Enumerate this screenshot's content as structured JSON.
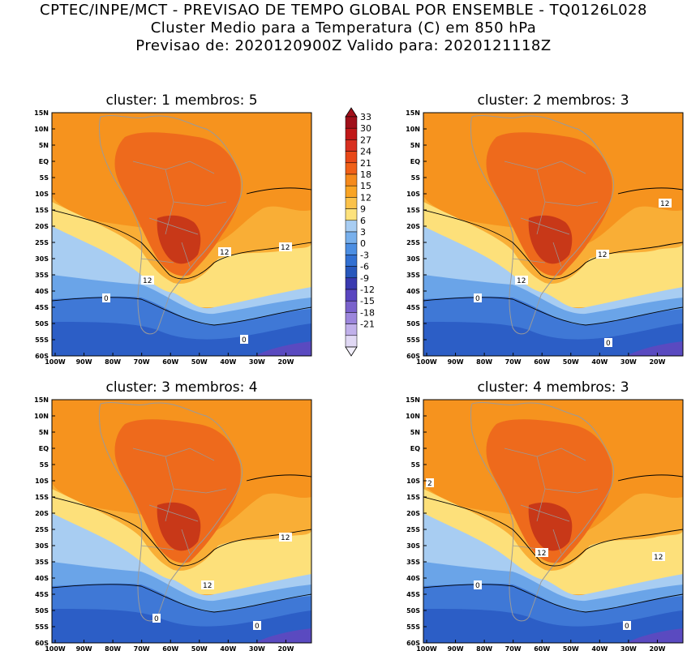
{
  "header": {
    "line1": "CPTEC/INPE/MCT - PREVISAO DE TEMPO GLOBAL POR ENSEMBLE - TQ0126L028",
    "line2": "Cluster Medio para a Temperatura (C) em 850 hPa",
    "line3": "Previsao de: 2020120900Z   Valido para: 2020121118Z"
  },
  "panels": [
    {
      "title": "cluster: 1   membros: 5",
      "labels": [
        "12",
        "12",
        "12",
        "0",
        "0"
      ]
    },
    {
      "title": "cluster: 2   membros: 3",
      "labels": [
        "12",
        "12",
        "12",
        "0",
        "0"
      ]
    },
    {
      "title": "cluster: 3   membros: 4",
      "labels": [
        "12",
        "12",
        "0",
        "0"
      ]
    },
    {
      "title": "cluster: 4   membros: 3",
      "labels": [
        "2",
        "12",
        "12",
        "0",
        "0"
      ]
    }
  ],
  "axes": {
    "lat_ticks": [
      "15N",
      "10N",
      "5N",
      "EQ",
      "5S",
      "10S",
      "15S",
      "20S",
      "25S",
      "30S",
      "35S",
      "40S",
      "45S",
      "50S",
      "55S",
      "60S"
    ],
    "lon_ticks": [
      "100W",
      "90W",
      "80W",
      "70W",
      "60W",
      "50W",
      "40W",
      "30W",
      "20W"
    ]
  },
  "colorbar": {
    "ticks": [
      "33",
      "30",
      "27",
      "24",
      "21",
      "18",
      "15",
      "12",
      "9",
      "6",
      "3",
      "0",
      "-3",
      "-6",
      "-9",
      "-12",
      "-15",
      "-18",
      "-21"
    ],
    "colors": [
      "#a0101a",
      "#c01818",
      "#d83020",
      "#e84818",
      "#f06018",
      "#f58a1c",
      "#f9a424",
      "#fbc24a",
      "#fde27c",
      "#a8cdf2",
      "#78b0ec",
      "#4c8ee2",
      "#3270d2",
      "#2858bc",
      "#3a3ab0",
      "#5a46c0",
      "#7a62cc",
      "#9c86dc",
      "#c0b0ea",
      "#e0d8f4"
    ]
  },
  "colors": {
    "deep_warm": "#c83818",
    "warm": "#ee6a1c",
    "orange": "#f6931e",
    "light_orange": "#f9ae36",
    "yellow": "#fde07a",
    "light_blue": "#a8cdf2",
    "mid_blue": "#6aa4e8",
    "blue": "#3f78d6",
    "dark_blue": "#2c5ec6",
    "purple": "#5a4ac0"
  }
}
